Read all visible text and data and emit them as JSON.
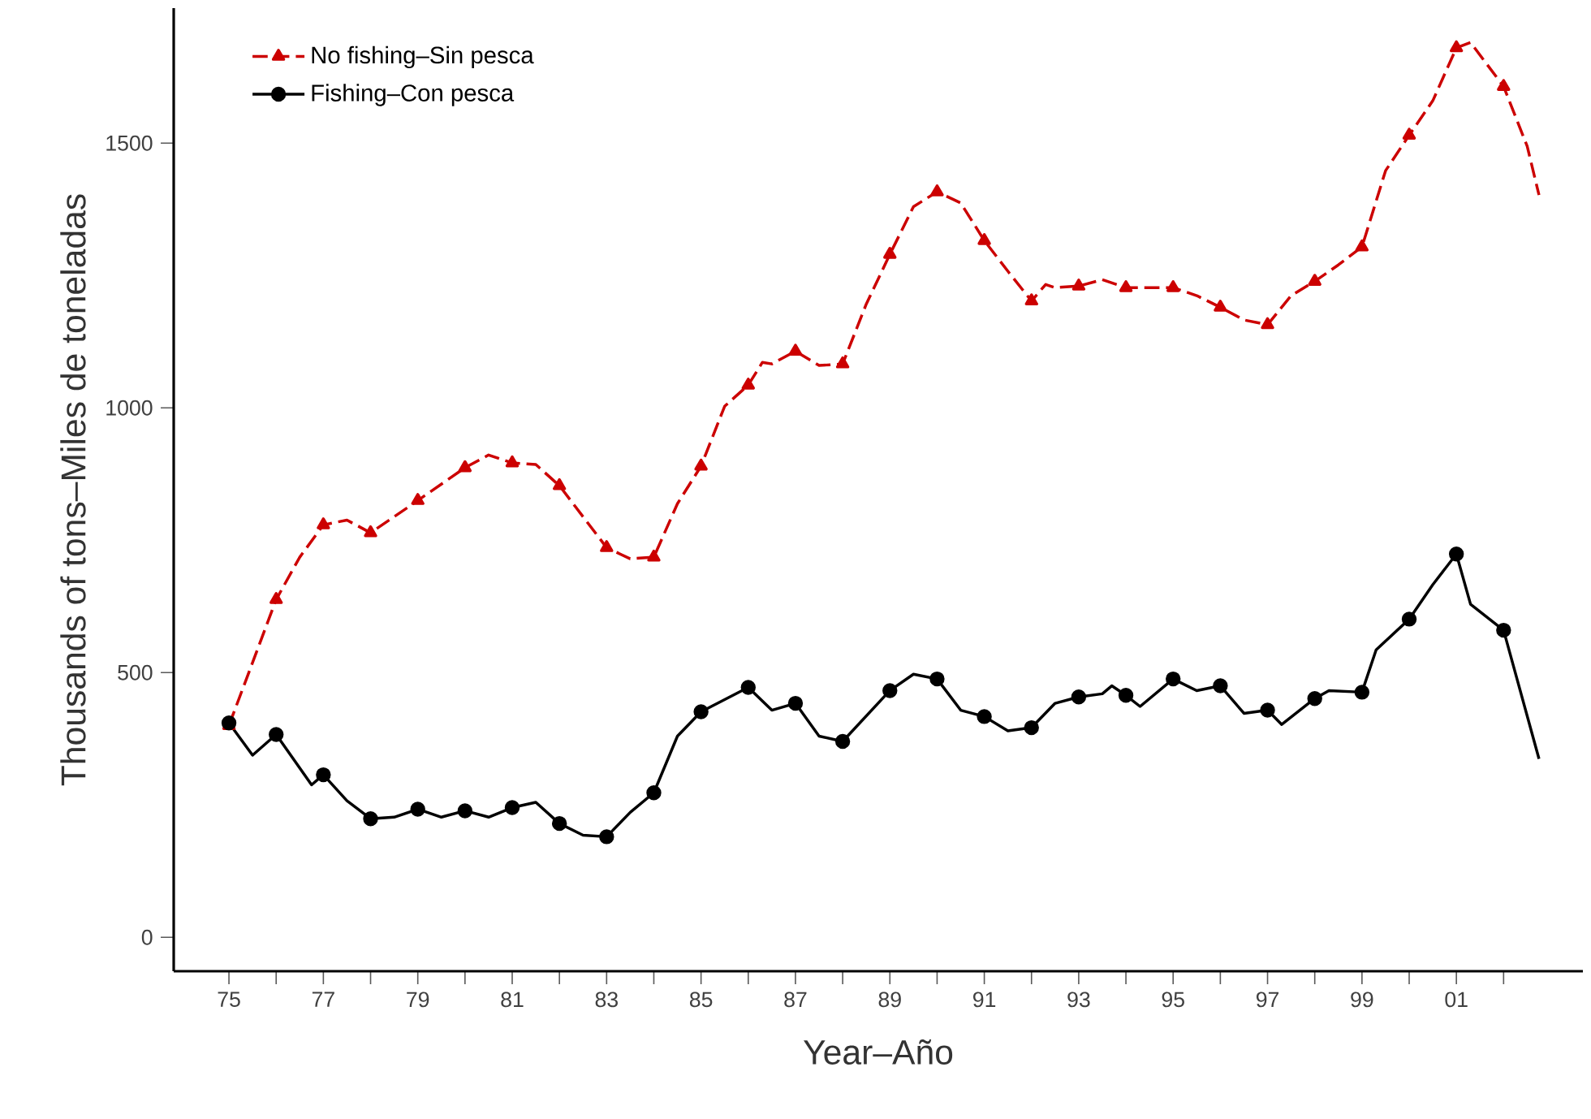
{
  "chart_data": {
    "type": "line",
    "xlabel": "Year–Año",
    "ylabel": "Thousands of tons–Miles de toneladas",
    "xlim": [
      1973.83,
      2003.68
    ],
    "ylim": [
      -64,
      1755
    ],
    "xticks": [
      {
        "value": 1975,
        "label": "75"
      },
      {
        "value": 1976,
        "label": null
      },
      {
        "value": 1977,
        "label": "77"
      },
      {
        "value": 1978,
        "label": null
      },
      {
        "value": 1979,
        "label": "79"
      },
      {
        "value": 1980,
        "label": null
      },
      {
        "value": 1981,
        "label": "81"
      },
      {
        "value": 1982,
        "label": null
      },
      {
        "value": 1983,
        "label": "83"
      },
      {
        "value": 1984,
        "label": null
      },
      {
        "value": 1985,
        "label": "85"
      },
      {
        "value": 1986,
        "label": null
      },
      {
        "value": 1987,
        "label": "87"
      },
      {
        "value": 1988,
        "label": null
      },
      {
        "value": 1989,
        "label": "89"
      },
      {
        "value": 1990,
        "label": null
      },
      {
        "value": 1991,
        "label": "91"
      },
      {
        "value": 1992,
        "label": null
      },
      {
        "value": 1993,
        "label": "93"
      },
      {
        "value": 1994,
        "label": null
      },
      {
        "value": 1995,
        "label": "95"
      },
      {
        "value": 1996,
        "label": null
      },
      {
        "value": 1997,
        "label": "97"
      },
      {
        "value": 1998,
        "label": null
      },
      {
        "value": 1999,
        "label": "99"
      },
      {
        "value": 2000,
        "label": null
      },
      {
        "value": 2001,
        "label": "01"
      },
      {
        "value": 2002,
        "label": null
      }
    ],
    "yticks": [
      0,
      500,
      1000,
      1500
    ],
    "legend": "top left",
    "series": [
      {
        "name": "No fishing–Sin pesca",
        "color": "#cc0000",
        "marker": "triangle",
        "line_style": "dashed",
        "x": [
          1975,
          1976,
          1976.5,
          1977,
          1977.5,
          1978,
          1979,
          1980,
          1980.5,
          1981,
          1981.5,
          1982,
          1983,
          1983.5,
          1984,
          1984.5,
          1985,
          1985.5,
          1986,
          1986.3,
          1986.5,
          1987,
          1987.5,
          1988,
          1988.5,
          1989,
          1989.5,
          1990,
          1990.5,
          1991,
          1991.5,
          1992,
          1992.3,
          1992.5,
          1993,
          1993.5,
          1994,
          1994.5,
          1995,
          1995.5,
          1996,
          1996.5,
          1997,
          1997.5,
          1998,
          1998.5,
          1999,
          1999.5,
          2000,
          2000.5,
          2001,
          2001.3,
          2002,
          2002.5,
          2002.75
        ],
        "values": [
          400,
          638,
          718,
          779,
          788,
          764,
          825,
          887,
          911,
          896,
          893,
          853,
          736,
          715,
          718,
          819,
          890,
          1003,
          1043,
          1086,
          1083,
          1107,
          1080,
          1083,
          1196,
          1290,
          1380,
          1408,
          1387,
          1316,
          1258,
          1202,
          1233,
          1227,
          1230,
          1242,
          1227,
          1227,
          1227,
          1212,
          1190,
          1166,
          1157,
          1212,
          1239,
          1270,
          1304,
          1448,
          1515,
          1580,
          1680,
          1690,
          1607,
          1494,
          1402
        ]
      },
      {
        "name": "Fishing–Con pesca",
        "color": "#000000",
        "marker": "circle",
        "line_style": "solid",
        "x": [
          1975,
          1975.5,
          1976,
          1976.75,
          1977,
          1977.5,
          1978,
          1978.5,
          1979,
          1979.5,
          1980,
          1980.5,
          1981,
          1981.5,
          1982,
          1982.5,
          1983,
          1983.5,
          1984,
          1984.5,
          1985,
          1986,
          1986.5,
          1987,
          1987.5,
          1988,
          1989,
          1989.5,
          1990,
          1990.5,
          1991,
          1991.5,
          1992,
          1992.5,
          1993,
          1993.5,
          1993.7,
          1994,
          1994.3,
          1995,
          1995.5,
          1996,
          1996.5,
          1997,
          1997.3,
          1998,
          1998.3,
          1999,
          1999.3,
          2000,
          2000.5,
          2001,
          2001.3,
          2002,
          2002.75
        ],
        "values": [
          405,
          344,
          383,
          288,
          307,
          258,
          224,
          227,
          242,
          227,
          239,
          227,
          245,
          255,
          215,
          193,
          190,
          236,
          273,
          380,
          426,
          472,
          429,
          442,
          380,
          370,
          466,
          497,
          488,
          429,
          417,
          390,
          396,
          442,
          454,
          460,
          475,
          457,
          436,
          488,
          466,
          475,
          423,
          429,
          402,
          451,
          466,
          463,
          543,
          601,
          666,
          724,
          629,
          580,
          337
        ]
      }
    ]
  }
}
